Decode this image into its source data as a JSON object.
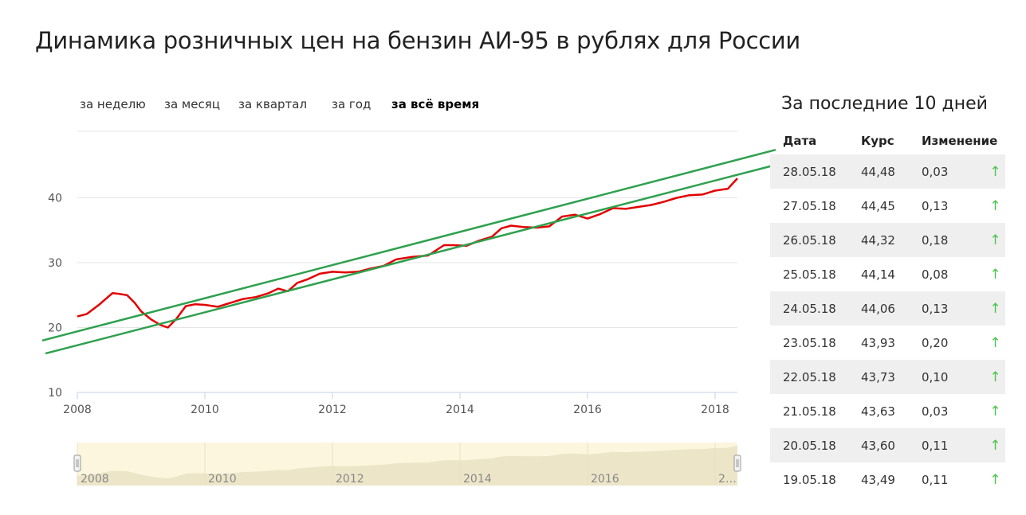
{
  "page": {
    "title": "Динамика розничных цен на бензин АИ-95 в рублях для России"
  },
  "periods": [
    {
      "label": "за неделю",
      "active": false
    },
    {
      "label": "за месяц",
      "active": false
    },
    {
      "label": "за квартал",
      "active": false
    },
    {
      "label": "за год",
      "active": false
    },
    {
      "label": "за всё время",
      "active": true
    }
  ],
  "side": {
    "title": "За последние 10 дней",
    "headers": [
      "Дата",
      "Курс",
      "Изменение"
    ],
    "rows": [
      {
        "date": "28.05.18",
        "rate": "44,48",
        "change": "0,03",
        "arrow": "↑"
      },
      {
        "date": "27.05.18",
        "rate": "44,45",
        "change": "0,13",
        "arrow": "↑"
      },
      {
        "date": "26.05.18",
        "rate": "44,32",
        "change": "0,18",
        "arrow": "↑"
      },
      {
        "date": "25.05.18",
        "rate": "44,14",
        "change": "0,08",
        "arrow": "↑"
      },
      {
        "date": "24.05.18",
        "rate": "44,06",
        "change": "0,13",
        "arrow": "↑"
      },
      {
        "date": "23.05.18",
        "rate": "43,93",
        "change": "0,20",
        "arrow": "↑"
      },
      {
        "date": "22.05.18",
        "rate": "43,73",
        "change": "0,10",
        "arrow": "↑"
      },
      {
        "date": "21.05.18",
        "rate": "43,63",
        "change": "0,03",
        "arrow": "↑"
      },
      {
        "date": "20.05.18",
        "rate": "43,60",
        "change": "0,11",
        "arrow": "↑"
      },
      {
        "date": "19.05.18",
        "rate": "43,49",
        "change": "0,11",
        "arrow": "↑"
      }
    ]
  },
  "chart_data": {
    "type": "line",
    "title": "Динамика розничных цен на бензин АИ-95 в рублях для России",
    "xlabel": "",
    "ylabel": "",
    "xlim": [
      2008,
      2018.35
    ],
    "ylim": [
      10,
      50
    ],
    "grid": true,
    "x_ticks": [
      2008,
      2010,
      2012,
      2014,
      2016,
      2018
    ],
    "y_ticks": [
      10,
      20,
      30,
      40
    ],
    "colors": {
      "line": "#e30000",
      "trend": "#2fa04e",
      "navigator_fill": "#ece5c8",
      "navigator_bg": "#fbf6dd"
    },
    "series": [
      {
        "x": [
          2008.0,
          2008.15,
          2008.35,
          2008.55,
          2008.65,
          2008.78,
          2008.9,
          2009.0,
          2009.15,
          2009.3,
          2009.42,
          2009.55,
          2009.7,
          2009.85,
          2010.0,
          2010.2,
          2010.4,
          2010.6,
          2010.8,
          2011.0,
          2011.15,
          2011.3,
          2011.45,
          2011.6,
          2011.8,
          2012.0,
          2012.2,
          2012.4,
          2012.6,
          2012.8,
          2013.0,
          2013.25,
          2013.5,
          2013.75,
          2013.9,
          2014.1,
          2014.3,
          2014.5,
          2014.65,
          2014.8,
          2015.0,
          2015.2,
          2015.4,
          2015.6,
          2015.8,
          2016.0,
          2016.2,
          2016.4,
          2016.6,
          2016.8,
          2017.0,
          2017.2,
          2017.4,
          2017.6,
          2017.8,
          2018.0,
          2018.2,
          2018.35
        ],
        "values": [
          21.7,
          22.1,
          23.6,
          25.3,
          25.2,
          25.0,
          23.8,
          22.5,
          21.3,
          20.4,
          20.0,
          21.3,
          23.3,
          23.6,
          23.5,
          23.2,
          23.8,
          24.4,
          24.7,
          25.3,
          26.0,
          25.6,
          26.9,
          27.4,
          28.3,
          28.6,
          28.5,
          28.6,
          29.1,
          29.5,
          30.5,
          30.9,
          31.1,
          32.7,
          32.7,
          32.6,
          33.4,
          34.0,
          35.3,
          35.7,
          35.5,
          35.4,
          35.6,
          37.1,
          37.4,
          36.8,
          37.5,
          38.4,
          38.3,
          38.6,
          38.9,
          39.4,
          40.0,
          40.4,
          40.5,
          41.1,
          41.4,
          43.0
        ]
      }
    ],
    "trendlines": [
      {
        "x": [
          2007.45,
          2018.95
        ],
        "values": [
          18.0,
          47.4
        ]
      },
      {
        "x": [
          2007.5,
          2019.0
        ],
        "values": [
          16.0,
          45.2
        ]
      }
    ],
    "navigator_ticks": [
      "2008",
      "2010",
      "2012",
      "2014",
      "2016",
      "2…"
    ]
  }
}
